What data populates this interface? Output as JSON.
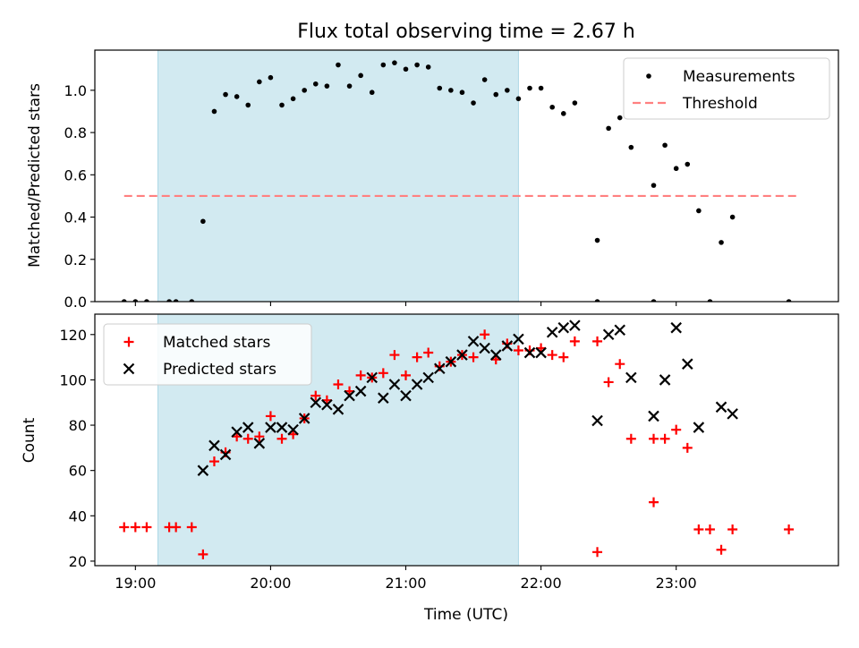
{
  "title": "Flux total observing time = 2.67 h",
  "colors": {
    "shade": "#add8e6",
    "measurement": "#000000",
    "threshold": "#ff8080",
    "matched": "#ff0000",
    "predicted": "#000000"
  },
  "chart_data": [
    {
      "type": "scatter",
      "title": "Flux total observing time = 2.67 h",
      "xlabel": "",
      "ylabel": "Matched/Predicted stars",
      "ylim": [
        0,
        1.19
      ],
      "xlim": [
        "18:42",
        "24:12"
      ],
      "x_ticks": [
        "19:00",
        "20:00",
        "21:00",
        "22:00",
        "23:00"
      ],
      "y_ticks": [
        "0.0",
        "0.2",
        "0.4",
        "0.6",
        "0.8",
        "1.0"
      ],
      "shaded_region": [
        "19:10",
        "21:50"
      ],
      "legend": {
        "position": "top-right",
        "entries": [
          "Measurements",
          "Threshold"
        ]
      },
      "threshold": {
        "name": "Threshold",
        "y": 0.5,
        "x": [
          "18:55",
          "23:55"
        ]
      },
      "series": [
        {
          "name": "Measurements",
          "marker": "dot",
          "points": [
            [
              "18:55",
              0.0
            ],
            [
              "19:00",
              0.0
            ],
            [
              "19:05",
              0.0
            ],
            [
              "19:15",
              0.0
            ],
            [
              "19:18",
              0.0
            ],
            [
              "19:25",
              0.0
            ],
            [
              "19:30",
              0.38
            ],
            [
              "19:35",
              0.9
            ],
            [
              "19:40",
              0.98
            ],
            [
              "19:45",
              0.97
            ],
            [
              "19:50",
              0.93
            ],
            [
              "19:55",
              1.04
            ],
            [
              "20:00",
              1.06
            ],
            [
              "20:05",
              0.93
            ],
            [
              "20:10",
              0.96
            ],
            [
              "20:15",
              1.0
            ],
            [
              "20:20",
              1.03
            ],
            [
              "20:25",
              1.02
            ],
            [
              "20:30",
              1.12
            ],
            [
              "20:35",
              1.02
            ],
            [
              "20:40",
              1.07
            ],
            [
              "20:45",
              0.99
            ],
            [
              "20:50",
              1.12
            ],
            [
              "20:55",
              1.13
            ],
            [
              "21:00",
              1.1
            ],
            [
              "21:05",
              1.12
            ],
            [
              "21:10",
              1.11
            ],
            [
              "21:15",
              1.01
            ],
            [
              "21:20",
              1.0
            ],
            [
              "21:25",
              0.99
            ],
            [
              "21:30",
              0.94
            ],
            [
              "21:35",
              1.05
            ],
            [
              "21:40",
              0.98
            ],
            [
              "21:45",
              1.0
            ],
            [
              "21:50",
              0.96
            ],
            [
              "21:55",
              1.01
            ],
            [
              "22:00",
              1.01
            ],
            [
              "22:05",
              0.92
            ],
            [
              "22:10",
              0.89
            ],
            [
              "22:15",
              0.94
            ],
            [
              "22:25",
              0.0
            ],
            [
              "22:25",
              0.29
            ],
            [
              "22:30",
              0.82
            ],
            [
              "22:35",
              0.87
            ],
            [
              "22:40",
              0.73
            ],
            [
              "22:50",
              0.0
            ],
            [
              "22:50",
              0.55
            ],
            [
              "22:55",
              0.74
            ],
            [
              "23:00",
              0.63
            ],
            [
              "23:05",
              0.65
            ],
            [
              "23:10",
              0.43
            ],
            [
              "23:15",
              0.0
            ],
            [
              "23:20",
              0.28
            ],
            [
              "23:25",
              0.4
            ],
            [
              "23:50",
              0.0
            ]
          ]
        }
      ]
    },
    {
      "type": "scatter",
      "title": "",
      "xlabel": "Time (UTC)",
      "ylabel": "Count",
      "ylim": [
        18,
        129
      ],
      "xlim": [
        "18:42",
        "24:12"
      ],
      "x_ticks": [
        "19:00",
        "20:00",
        "21:00",
        "22:00",
        "23:00"
      ],
      "y_ticks": [
        "20",
        "40",
        "60",
        "80",
        "100",
        "120"
      ],
      "shaded_region": [
        "19:10",
        "21:50"
      ],
      "legend": {
        "position": "top-left",
        "entries": [
          "Matched stars",
          "Predicted stars"
        ]
      },
      "series": [
        {
          "name": "Matched stars",
          "marker": "plus",
          "points": [
            [
              "18:55",
              35
            ],
            [
              "19:00",
              35
            ],
            [
              "19:05",
              35
            ],
            [
              "19:15",
              35
            ],
            [
              "19:18",
              35
            ],
            [
              "19:25",
              35
            ],
            [
              "19:30",
              23
            ],
            [
              "19:35",
              64
            ],
            [
              "19:40",
              68
            ],
            [
              "19:45",
              75
            ],
            [
              "19:50",
              74
            ],
            [
              "19:55",
              75
            ],
            [
              "20:00",
              84
            ],
            [
              "20:05",
              74
            ],
            [
              "20:10",
              76
            ],
            [
              "20:15",
              83
            ],
            [
              "20:20",
              93
            ],
            [
              "20:25",
              91
            ],
            [
              "20:30",
              98
            ],
            [
              "20:35",
              95
            ],
            [
              "20:40",
              102
            ],
            [
              "20:45",
              101
            ],
            [
              "20:50",
              103
            ],
            [
              "20:55",
              111
            ],
            [
              "21:00",
              102
            ],
            [
              "21:05",
              110
            ],
            [
              "21:10",
              112
            ],
            [
              "21:15",
              106
            ],
            [
              "21:20",
              108
            ],
            [
              "21:25",
              111
            ],
            [
              "21:30",
              110
            ],
            [
              "21:35",
              120
            ],
            [
              "21:40",
              109
            ],
            [
              "21:45",
              116
            ],
            [
              "21:50",
              113
            ],
            [
              "21:55",
              113
            ],
            [
              "22:00",
              114
            ],
            [
              "22:05",
              111
            ],
            [
              "22:10",
              110
            ],
            [
              "22:15",
              117
            ],
            [
              "22:25",
              24
            ],
            [
              "22:25",
              117
            ],
            [
              "22:30",
              99
            ],
            [
              "22:35",
              107
            ],
            [
              "22:40",
              74
            ],
            [
              "22:50",
              74
            ],
            [
              "22:50",
              46
            ],
            [
              "22:55",
              74
            ],
            [
              "23:00",
              78
            ],
            [
              "23:05",
              70
            ],
            [
              "23:10",
              34
            ],
            [
              "23:15",
              34
            ],
            [
              "23:20",
              25
            ],
            [
              "23:25",
              34
            ],
            [
              "23:50",
              34
            ]
          ]
        },
        {
          "name": "Predicted stars",
          "marker": "x",
          "points": [
            [
              "19:30",
              60
            ],
            [
              "19:35",
              71
            ],
            [
              "19:40",
              67
            ],
            [
              "19:45",
              77
            ],
            [
              "19:50",
              79
            ],
            [
              "19:55",
              72
            ],
            [
              "20:00",
              79
            ],
            [
              "20:05",
              79
            ],
            [
              "20:10",
              78
            ],
            [
              "20:15",
              83
            ],
            [
              "20:20",
              90
            ],
            [
              "20:25",
              89
            ],
            [
              "20:30",
              87
            ],
            [
              "20:35",
              93
            ],
            [
              "20:40",
              95
            ],
            [
              "20:45",
              101
            ],
            [
              "20:50",
              92
            ],
            [
              "20:55",
              98
            ],
            [
              "21:00",
              93
            ],
            [
              "21:05",
              98
            ],
            [
              "21:10",
              101
            ],
            [
              "21:15",
              105
            ],
            [
              "21:20",
              108
            ],
            [
              "21:25",
              111
            ],
            [
              "21:30",
              117
            ],
            [
              "21:35",
              114
            ],
            [
              "21:40",
              111
            ],
            [
              "21:45",
              115
            ],
            [
              "21:50",
              118
            ],
            [
              "21:55",
              112
            ],
            [
              "22:00",
              112
            ],
            [
              "22:05",
              121
            ],
            [
              "22:10",
              123
            ],
            [
              "22:15",
              124
            ],
            [
              "22:25",
              82
            ],
            [
              "22:30",
              120
            ],
            [
              "22:35",
              122
            ],
            [
              "22:40",
              101
            ],
            [
              "22:50",
              84
            ],
            [
              "22:55",
              100
            ],
            [
              "23:00",
              123
            ],
            [
              "23:05",
              107
            ],
            [
              "23:10",
              79
            ],
            [
              "23:20",
              88
            ],
            [
              "23:25",
              85
            ]
          ]
        }
      ]
    }
  ]
}
